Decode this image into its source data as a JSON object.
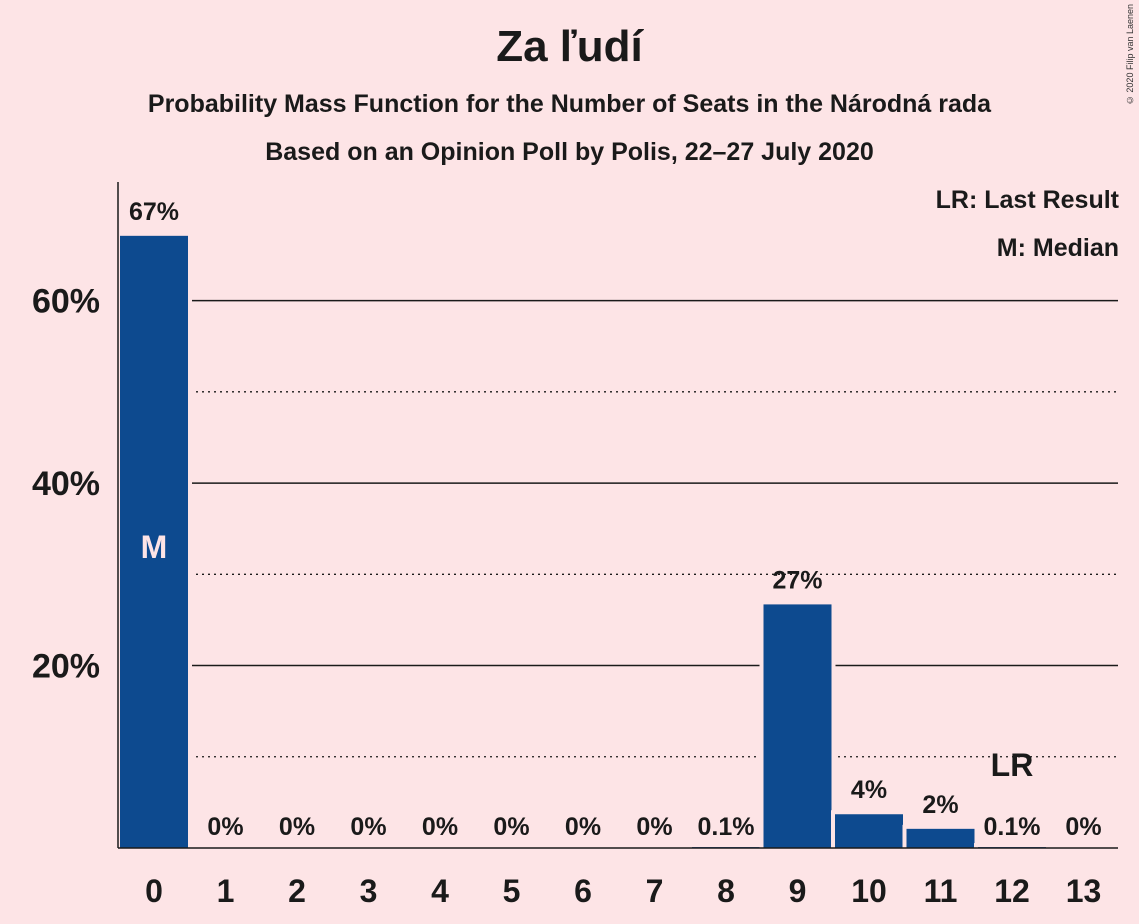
{
  "header": {
    "title": "Za ľudí",
    "subtitle": "Probability Mass Function for the Number of Seats in the Národná rada",
    "subtitle2": "Based on an Opinion Poll by Polis, 22–27 July 2020",
    "copyright": "© 2020 Filip van Laenen"
  },
  "legend": {
    "last_result": "LR: Last Result",
    "median": "M: Median"
  },
  "colors": {
    "bar": "#0d4a8f",
    "background": "#fde4e6",
    "median_text": "#fde4e6"
  },
  "chart_data": {
    "type": "bar",
    "title": "Za ľudí",
    "categories": [
      "0",
      "1",
      "2",
      "3",
      "4",
      "5",
      "6",
      "7",
      "8",
      "9",
      "10",
      "11",
      "12",
      "13"
    ],
    "values": [
      67.1,
      0,
      0,
      0,
      0,
      0,
      0,
      0,
      0.1,
      26.7,
      3.7,
      2.1,
      0.1,
      0
    ],
    "value_labels": [
      "67%",
      "0%",
      "0%",
      "0%",
      "0%",
      "0%",
      "0%",
      "0%",
      "0.1%",
      "27%",
      "4%",
      "2%",
      "0.1%",
      "0%"
    ],
    "ylim": [
      0,
      73
    ],
    "yticks": [
      20,
      40,
      60
    ],
    "ytick_labels": [
      "20%",
      "40%",
      "60%"
    ],
    "grid_solid": [
      20,
      40,
      60
    ],
    "grid_dotted": [
      10,
      30,
      50
    ],
    "median_category": "0",
    "median_marker": "M",
    "last_result_category": "12",
    "last_result_marker": "LR"
  }
}
